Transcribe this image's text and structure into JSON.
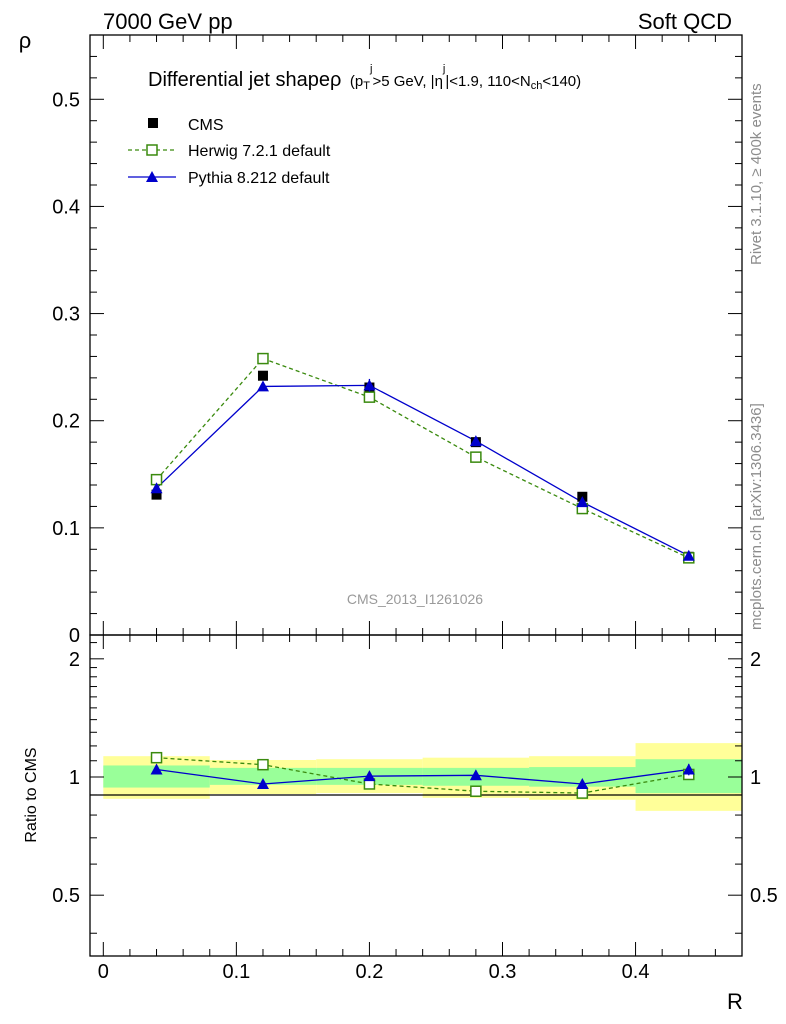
{
  "header": {
    "left": "7000 GeV pp",
    "right": "Soft QCD"
  },
  "side_labels": {
    "rivet": "Rivet 3.1.10, ≥ 400k events",
    "mcplots": "mcplots.cern.ch [arXiv:1306.3436]"
  },
  "chart_data": {
    "type": "line",
    "title": "Differential jet shapeρ",
    "title_cuts": "(p_T^j>5 GeV, |η^j|<1.9, 110<N_ch<140)",
    "watermark": "CMS_2013_I1261026",
    "xlabel": "R",
    "ylabel": "ρ",
    "ratio_ylabel": "Ratio to CMS",
    "xlim": [
      -0.01,
      0.48
    ],
    "ylim": [
      0,
      0.56
    ],
    "ratio_ylim": [
      0.35,
      2.3
    ],
    "x_ticks": [
      "0",
      "0.1",
      "0.2",
      "0.3",
      "0.4"
    ],
    "y_ticks": [
      "0",
      "0.1",
      "0.2",
      "0.3",
      "0.4",
      "0.5"
    ],
    "ratio_ticks": [
      "0.5",
      "1",
      "2"
    ],
    "legend_position": "top-left",
    "x": [
      0.04,
      0.12,
      0.2,
      0.28,
      0.36,
      0.44
    ],
    "bin_edges": [
      0.0,
      0.08,
      0.16,
      0.24,
      0.32,
      0.4,
      0.48
    ],
    "series": [
      {
        "name": "CMS",
        "style": "data",
        "color": "#000000",
        "values": [
          0.131,
          0.242,
          0.231,
          0.18,
          0.129,
          0.073
        ],
        "ratio": [
          1.0,
          1.0,
          1.0,
          1.0,
          1.0,
          1.0
        ],
        "band_stat": [
          [
            0.94,
            1.07
          ],
          [
            0.955,
            1.055
          ],
          [
            0.955,
            1.055
          ],
          [
            0.95,
            1.055
          ],
          [
            0.945,
            1.06
          ],
          [
            0.91,
            1.11
          ]
        ],
        "band_total": [
          [
            0.88,
            1.13
          ],
          [
            0.905,
            1.105
          ],
          [
            0.91,
            1.11
          ],
          [
            0.885,
            1.12
          ],
          [
            0.875,
            1.13
          ],
          [
            0.82,
            1.22
          ]
        ]
      },
      {
        "name": "Herwig 7.2.1 default",
        "style": "dashed-open-square",
        "color": "#3a8a0e",
        "values": [
          0.145,
          0.258,
          0.222,
          0.166,
          0.118,
          0.072
        ],
        "ratio": [
          1.12,
          1.075,
          0.96,
          0.92,
          0.91,
          1.015
        ]
      },
      {
        "name": "Pythia 8.212 default",
        "style": "solid-triangle",
        "color": "#0000cc",
        "values": [
          0.137,
          0.232,
          0.233,
          0.181,
          0.124,
          0.074
        ],
        "ratio": [
          1.045,
          0.96,
          1.005,
          1.01,
          0.96,
          1.045
        ],
        "errors": [
          0.004,
          0.004,
          0.006,
          0.003,
          0.003,
          0.002
        ],
        "ratio_errors": [
          0.03,
          0.02,
          0.025,
          0.02,
          0.025,
          0.035
        ]
      }
    ]
  }
}
